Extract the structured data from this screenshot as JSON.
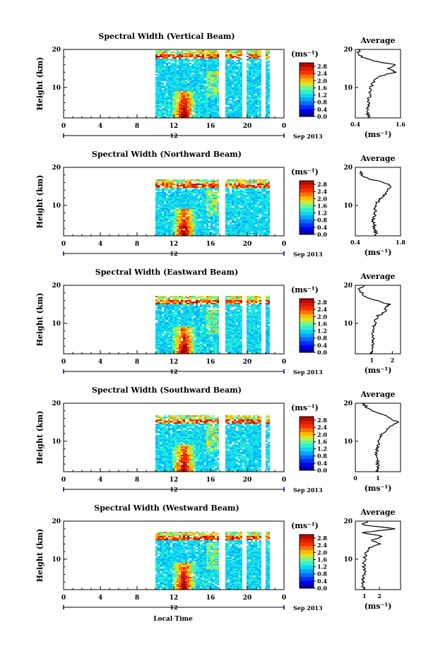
{
  "figure": {
    "xlabel": "Local Time",
    "date_label": "Sep 2013",
    "day_marker": "12",
    "ylabel": "Height (km)",
    "unit": "(ms⁻¹)",
    "avg_title": "Average",
    "avg_xlabel": "(ms⁻¹)"
  },
  "chart_data": [
    {
      "type": "heatmap",
      "title": "Spectral Width (Vertical Beam)",
      "xlim": [
        0,
        24
      ],
      "ylim": [
        2,
        20
      ],
      "x_ticks": [
        "0",
        "4",
        "8",
        "12",
        "16",
        "20",
        "0"
      ],
      "y_ticks": [
        "10",
        "20"
      ],
      "colorbar_ticks": [
        "0.0",
        "0.4",
        "0.8",
        "1.2",
        "1.6",
        "2.0",
        "2.4",
        "2.8"
      ],
      "colorbar_range": [
        0,
        3.0
      ],
      "data_start_hour": 10,
      "data_end_hour": 22.4,
      "gaps_hours": [
        17.1,
        17.4,
        19.6,
        21.6
      ],
      "top_km": 19.5,
      "profile": {
        "type": "line",
        "title": "Average",
        "xlim": [
          0.4,
          1.6
        ],
        "x_ticks": [
          "0.4",
          "1.6"
        ],
        "x_tick_values": [
          0.4,
          1.6
        ],
        "height_km": [
          2,
          4,
          6,
          8,
          10,
          11,
          12,
          13,
          14,
          15,
          16,
          17,
          18,
          19,
          20
        ],
        "width": [
          0.75,
          0.72,
          0.74,
          0.78,
          0.8,
          0.85,
          0.9,
          1.05,
          1.45,
          1.3,
          1.45,
          0.9,
          0.55,
          0.5,
          0.48
        ]
      }
    },
    {
      "type": "heatmap",
      "title": "Spectral Width (Northward Beam)",
      "xlim": [
        0,
        24
      ],
      "ylim": [
        2,
        20
      ],
      "x_ticks": [
        "0",
        "4",
        "8",
        "12",
        "16",
        "20",
        "0"
      ],
      "y_ticks": [
        "10",
        "20"
      ],
      "colorbar_ticks": [
        "0.0",
        "0.4",
        "0.8",
        "1.2",
        "1.6",
        "2.0",
        "2.4",
        "2.8"
      ],
      "colorbar_range": [
        0,
        3.0
      ],
      "data_start_hour": 10,
      "data_end_hour": 22.4,
      "gaps_hours": [
        17.1,
        17.4
      ],
      "top_km": 16.5,
      "profile": {
        "type": "line",
        "title": "Average",
        "xlim": [
          0.4,
          1.8
        ],
        "x_ticks": [
          "0.4",
          "1.8"
        ],
        "x_tick_values": [
          0.4,
          1.8
        ],
        "height_km": [
          2,
          4,
          6,
          8,
          10,
          11,
          12,
          13,
          14,
          15,
          16,
          17,
          18,
          19
        ],
        "width": [
          1.05,
          1.0,
          0.95,
          1.0,
          1.0,
          1.1,
          1.2,
          1.35,
          1.4,
          1.5,
          1.3,
          0.8,
          0.6,
          0.55
        ]
      }
    },
    {
      "type": "heatmap",
      "title": "Spectral Width (Eastward Beam)",
      "xlim": [
        0,
        24
      ],
      "ylim": [
        2,
        20
      ],
      "x_ticks": [
        "0",
        "4",
        "8",
        "12",
        "16",
        "20",
        "0"
      ],
      "y_ticks": [
        "10",
        "20"
      ],
      "colorbar_ticks": [
        "0.0",
        "0.4",
        "0.8",
        "1.2",
        "1.6",
        "2.0",
        "2.4",
        "2.8"
      ],
      "colorbar_range": [
        0,
        3.0
      ],
      "data_start_hour": 10,
      "data_end_hour": 22.4,
      "gaps_hours": [
        17.1,
        17.4,
        19.6,
        21.6
      ],
      "top_km": 17.0,
      "profile": {
        "type": "line",
        "title": "Average",
        "xlim": [
          0.2,
          2.4
        ],
        "x_ticks": [
          "1",
          "2"
        ],
        "x_tick_values": [
          1,
          2
        ],
        "height_km": [
          2,
          4,
          6,
          8,
          10,
          11,
          12,
          13,
          14,
          15,
          16,
          17,
          18,
          19,
          20
        ],
        "width": [
          1.0,
          1.05,
          1.1,
          1.05,
          1.15,
          1.2,
          1.3,
          1.6,
          1.7,
          1.85,
          1.2,
          0.7,
          0.5,
          0.4,
          0.6
        ]
      }
    },
    {
      "type": "heatmap",
      "title": "Spectral Width (Southward Beam)",
      "xlim": [
        0,
        24
      ],
      "ylim": [
        2,
        20
      ],
      "x_ticks": [
        "0",
        "4",
        "8",
        "12",
        "16",
        "20",
        "0"
      ],
      "y_ticks": [
        "10",
        "20"
      ],
      "colorbar_ticks": [
        "0.0",
        "0.4",
        "0.8",
        "1.2",
        "1.6",
        "2.0",
        "2.4",
        "2.8"
      ],
      "colorbar_range": [
        0,
        3.0
      ],
      "data_start_hour": 10,
      "data_end_hour": 22.4,
      "gaps_hours": [
        17.1,
        17.4,
        21.6
      ],
      "top_km": 16.5,
      "profile": {
        "type": "line",
        "title": "Average",
        "xlim": [
          0,
          2.0
        ],
        "x_ticks": [
          "0",
          "1"
        ],
        "x_tick_values": [
          0,
          1
        ],
        "height_km": [
          2,
          4,
          6,
          8,
          10,
          11,
          12,
          13,
          14,
          15,
          16,
          17,
          18,
          19,
          20
        ],
        "width": [
          0.95,
          1.0,
          0.9,
          0.95,
          1.05,
          1.1,
          1.2,
          1.35,
          1.6,
          1.9,
          1.5,
          1.3,
          0.7,
          0.5,
          0.3
        ]
      }
    },
    {
      "type": "heatmap",
      "title": "Spectral Width (Westward Beam)",
      "xlim": [
        0,
        24
      ],
      "ylim": [
        2,
        20
      ],
      "x_ticks": [
        "0",
        "4",
        "8",
        "12",
        "16",
        "20",
        "0"
      ],
      "y_ticks": [
        "10",
        "20"
      ],
      "colorbar_ticks": [
        "0.0",
        "0.4",
        "0.8",
        "1.2",
        "1.6",
        "2.0",
        "2.4",
        "2.8"
      ],
      "colorbar_range": [
        0,
        3.0
      ],
      "data_start_hour": 10,
      "data_end_hour": 22.4,
      "gaps_hours": [
        17.1,
        17.4,
        19.6,
        21.6
      ],
      "top_km": 17.0,
      "profile": {
        "type": "line",
        "title": "Average",
        "xlim": [
          0.4,
          3.4
        ],
        "x_ticks": [
          "1",
          "2"
        ],
        "x_tick_values": [
          1,
          2
        ],
        "height_km": [
          2,
          4,
          6,
          8,
          10,
          11,
          12,
          13,
          14,
          15,
          16,
          17,
          18,
          19,
          20
        ],
        "width": [
          0.95,
          0.9,
          1.0,
          0.95,
          1.0,
          1.05,
          1.2,
          1.3,
          2.0,
          1.5,
          2.2,
          0.8,
          3.1,
          0.9,
          1.2
        ]
      }
    }
  ]
}
